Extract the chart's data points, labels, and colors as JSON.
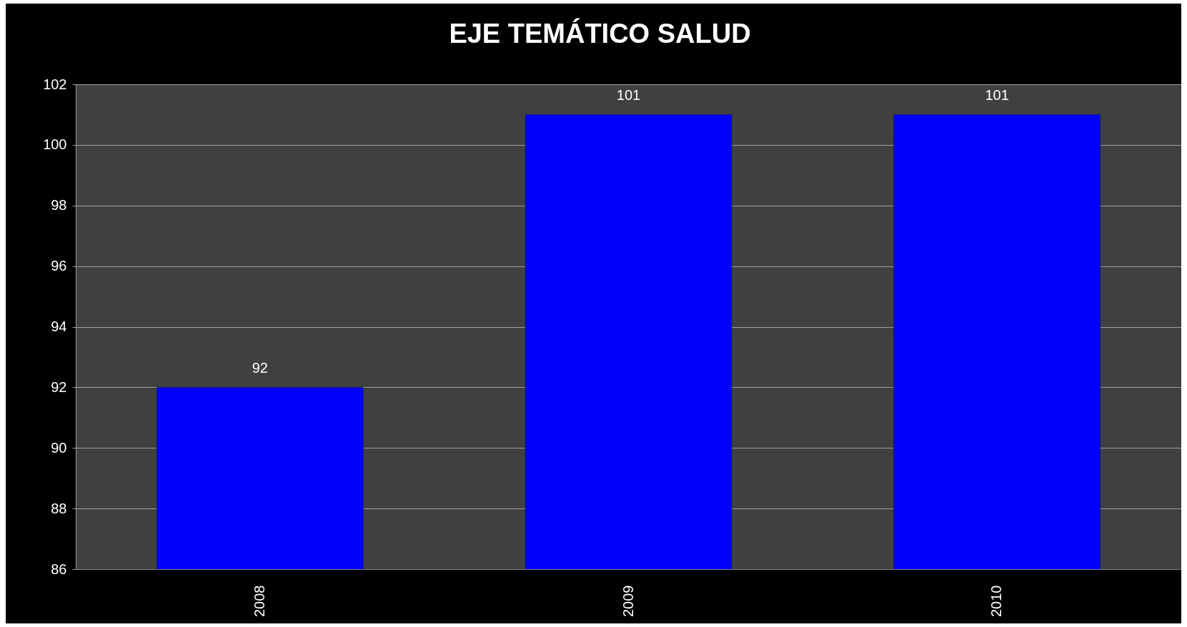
{
  "chart_data": {
    "type": "bar",
    "title": "EJE TEMÁTICO SALUD",
    "categories": [
      "2008",
      "2009",
      "2010"
    ],
    "values": [
      92,
      101,
      101
    ],
    "color": "#0000ff",
    "ylim": [
      86,
      102
    ],
    "yticks": [
      86,
      88,
      90,
      92,
      94,
      96,
      98,
      100,
      102
    ],
    "grid": "y",
    "data_labels": true
  }
}
